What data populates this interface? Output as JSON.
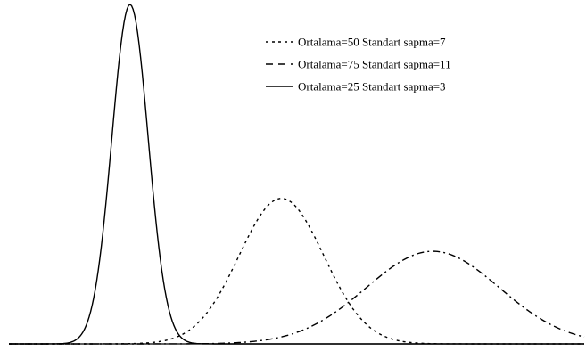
{
  "chart_data": {
    "type": "line",
    "title": "",
    "xlabel": "",
    "ylabel": "",
    "xlim": [
      5,
      100
    ],
    "ylim": [
      0,
      0.133
    ],
    "grid": false,
    "legend_position": "top-right",
    "series": [
      {
        "name": "Ortalama=50 Standart sapma=7",
        "mean": 50,
        "sd": 7,
        "dash": "dotted",
        "x": [
          5,
          10,
          15,
          20,
          25,
          30,
          35,
          40,
          45,
          50,
          55,
          60,
          65,
          70,
          75,
          80,
          85,
          90,
          95,
          100
        ],
        "values": [
          0.0,
          0.0,
          0.0,
          0.0,
          0.0,
          0.0011,
          0.0058,
          0.0207,
          0.0442,
          0.057,
          0.0442,
          0.0207,
          0.0058,
          0.001,
          0.0001,
          0.0,
          0.0,
          0.0,
          0.0,
          0.0
        ]
      },
      {
        "name": "Ortalama=75 Standart sapma=11",
        "mean": 75,
        "sd": 11,
        "dash": "dash-dot",
        "x": [
          5,
          10,
          15,
          20,
          25,
          30,
          35,
          40,
          45,
          50,
          55,
          60,
          65,
          70,
          75,
          80,
          85,
          90,
          95,
          100
        ],
        "values": [
          0.0,
          0.0,
          0.0,
          0.0,
          0.0,
          0.0,
          0.0,
          0.0001,
          0.0009,
          0.0027,
          0.0067,
          0.0143,
          0.024,
          0.0327,
          0.0363,
          0.0327,
          0.024,
          0.0143,
          0.0067,
          0.0027
        ]
      },
      {
        "name": "Ortalama=25 Standart sapma=3",
        "mean": 25,
        "sd": 3,
        "dash": "solid",
        "x": [
          5,
          10,
          15,
          20,
          25,
          30,
          35,
          40,
          45,
          50,
          55,
          60,
          65,
          70,
          75,
          80,
          85,
          90,
          95,
          100
        ],
        "values": [
          0.0,
          0.0,
          0.0005,
          0.0332,
          0.133,
          0.0332,
          0.0005,
          0.0,
          0.0,
          0.0,
          0.0,
          0.0,
          0.0,
          0.0,
          0.0,
          0.0,
          0.0,
          0.0,
          0.0,
          0.0
        ]
      }
    ]
  }
}
